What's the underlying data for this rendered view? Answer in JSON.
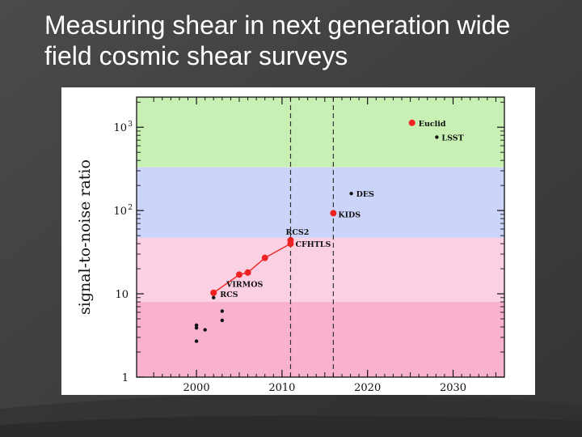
{
  "slide": {
    "title_line1": "Measuring shear in next generation wide",
    "title_line2": "field cosmic shear surveys"
  },
  "colors": {
    "slide_background": "#3e3e3e",
    "title_text": "#ffffff",
    "band_top": "#c8f0b4",
    "band_blue": "#ccd4fa",
    "band_pink_light": "#fbd0e2",
    "band_pink": "#f8b2d0",
    "highlight_points": "#ee2222",
    "other_points": "#111111"
  },
  "chart_data": {
    "type": "scatter",
    "ylabel": "signal-to-noise ratio",
    "xlabel": "",
    "x_scale": "linear",
    "y_scale": "log",
    "xlim": [
      1993,
      2036
    ],
    "ylim": [
      1,
      2300
    ],
    "x_ticks": [
      2000,
      2010,
      2020,
      2030
    ],
    "y_ticks": [
      {
        "value": 1,
        "base": "1",
        "exp": ""
      },
      {
        "value": 10,
        "base": "10",
        "exp": ""
      },
      {
        "value": 100,
        "base": "10",
        "exp": "2"
      },
      {
        "value": 1000,
        "base": "10",
        "exp": "3"
      }
    ],
    "bands": [
      {
        "y_from": 330,
        "y_to": 2300,
        "color": "#c8f0b4"
      },
      {
        "y_from": 47,
        "y_to": 330,
        "color": "#ccd4fa"
      },
      {
        "y_from": 8,
        "y_to": 47,
        "color": "#fbd0e2"
      },
      {
        "y_from": 1,
        "y_to": 8,
        "color": "#f8b2d0"
      }
    ],
    "vlines": [
      2011,
      2016
    ],
    "red_line": {
      "x": [
        2002,
        2005,
        2006,
        2008,
        2011,
        2011
      ],
      "y": [
        10.3,
        17,
        18,
        27,
        40,
        44
      ]
    },
    "points": [
      {
        "x": 2025.2,
        "y": 1130,
        "group": "highlight",
        "label": "Euclid"
      },
      {
        "x": 2028.1,
        "y": 760,
        "group": "other",
        "label": "LSST"
      },
      {
        "x": 2018.1,
        "y": 160,
        "group": "other",
        "label": "DES"
      },
      {
        "x": 2016,
        "y": 93,
        "group": "highlight",
        "label": "KIDS"
      },
      {
        "x": 2011,
        "y": 44,
        "group": "highlight",
        "label": "RCS2"
      },
      {
        "x": 2011,
        "y": 40,
        "group": "highlight",
        "label": "CFHTLS"
      },
      {
        "x": 2008,
        "y": 27,
        "group": "highlight",
        "label": ""
      },
      {
        "x": 2006,
        "y": 18,
        "group": "highlight",
        "label": ""
      },
      {
        "x": 2005,
        "y": 17,
        "group": "highlight",
        "label": "VIRMOS"
      },
      {
        "x": 2002,
        "y": 10.3,
        "group": "highlight",
        "label": "RCS"
      },
      {
        "x": 2002,
        "y": 9,
        "group": "other",
        "label": ""
      },
      {
        "x": 2003,
        "y": 6.2,
        "group": "other",
        "label": ""
      },
      {
        "x": 2003,
        "y": 4.8,
        "group": "other",
        "label": ""
      },
      {
        "x": 2000,
        "y": 4.2,
        "group": "other",
        "label": ""
      },
      {
        "x": 2000,
        "y": 3.9,
        "group": "other",
        "label": ""
      },
      {
        "x": 2001,
        "y": 3.7,
        "group": "other",
        "label": ""
      },
      {
        "x": 2000,
        "y": 2.7,
        "group": "other",
        "label": ""
      }
    ]
  }
}
